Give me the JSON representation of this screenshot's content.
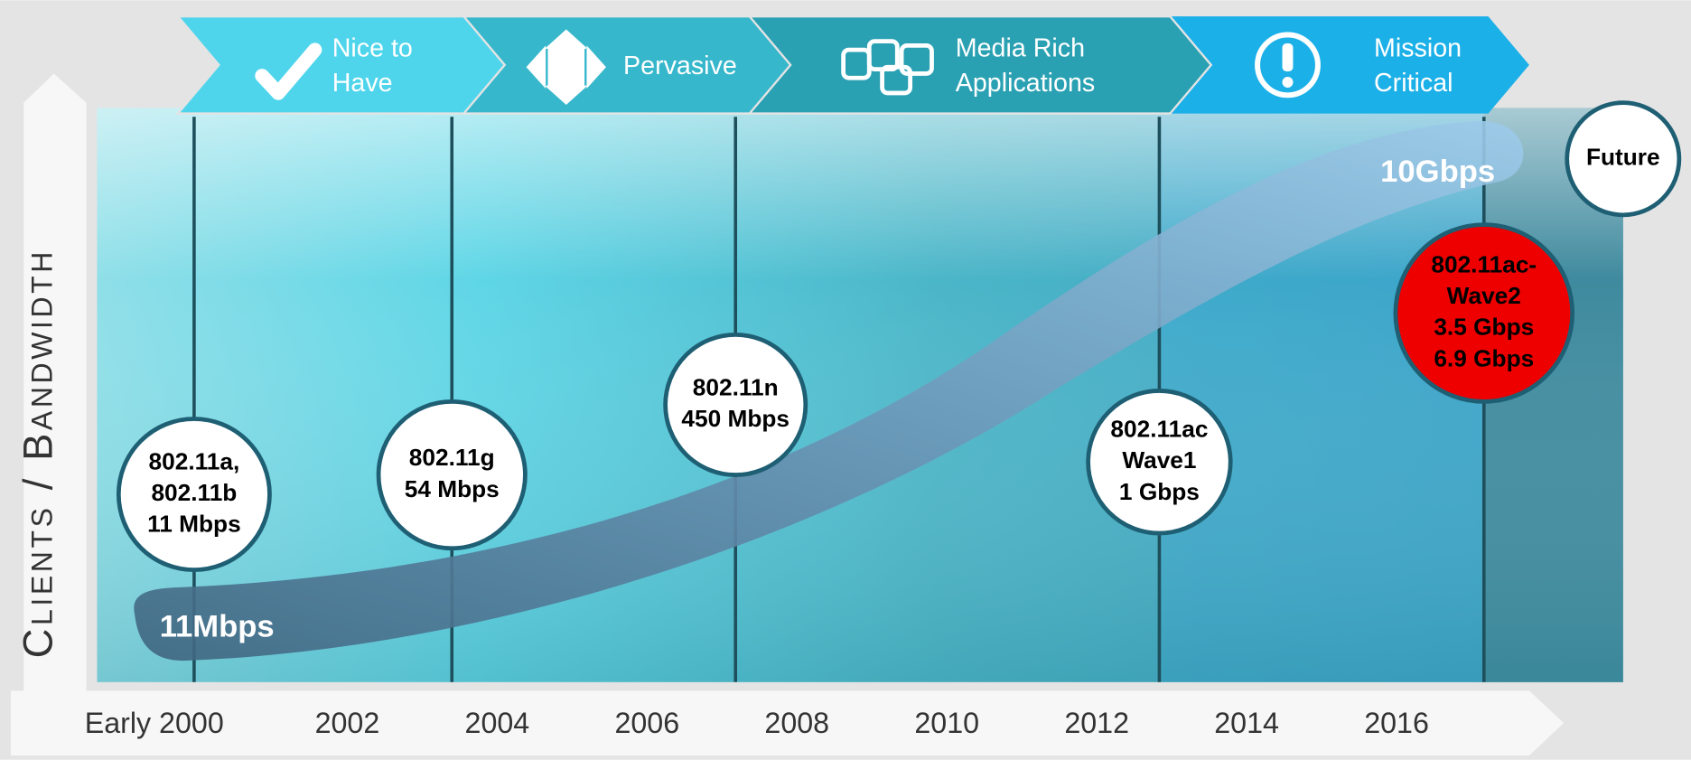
{
  "axis_label": "Clients / Bandwidth",
  "phases": [
    {
      "lines": [
        "Nice to",
        "Have"
      ]
    },
    {
      "lines": [
        "Pervasive"
      ]
    },
    {
      "lines": [
        "Media Rich",
        "Applications"
      ]
    },
    {
      "lines": [
        "Mission",
        "Critical"
      ]
    }
  ],
  "years": [
    "Early 2000",
    "2002",
    "2004",
    "2006",
    "2008",
    "2010",
    "2012",
    "2014",
    "2016"
  ],
  "milestones": [
    {
      "lines": [
        "802.11a,",
        "802.11b",
        "11 Mbps"
      ]
    },
    {
      "lines": [
        "802.11g",
        "54 Mbps"
      ]
    },
    {
      "lines": [
        "802.11n",
        "450 Mbps"
      ]
    },
    {
      "lines": [
        "802.11ac",
        "Wave1",
        "1 Gbps"
      ]
    },
    {
      "lines": [
        "802.11ac-",
        "Wave2",
        "3.5 Gbps",
        "6.9 Gbps"
      ]
    }
  ],
  "start_label": "11Mbps",
  "end_label": "10Gbps",
  "future": "Future"
}
